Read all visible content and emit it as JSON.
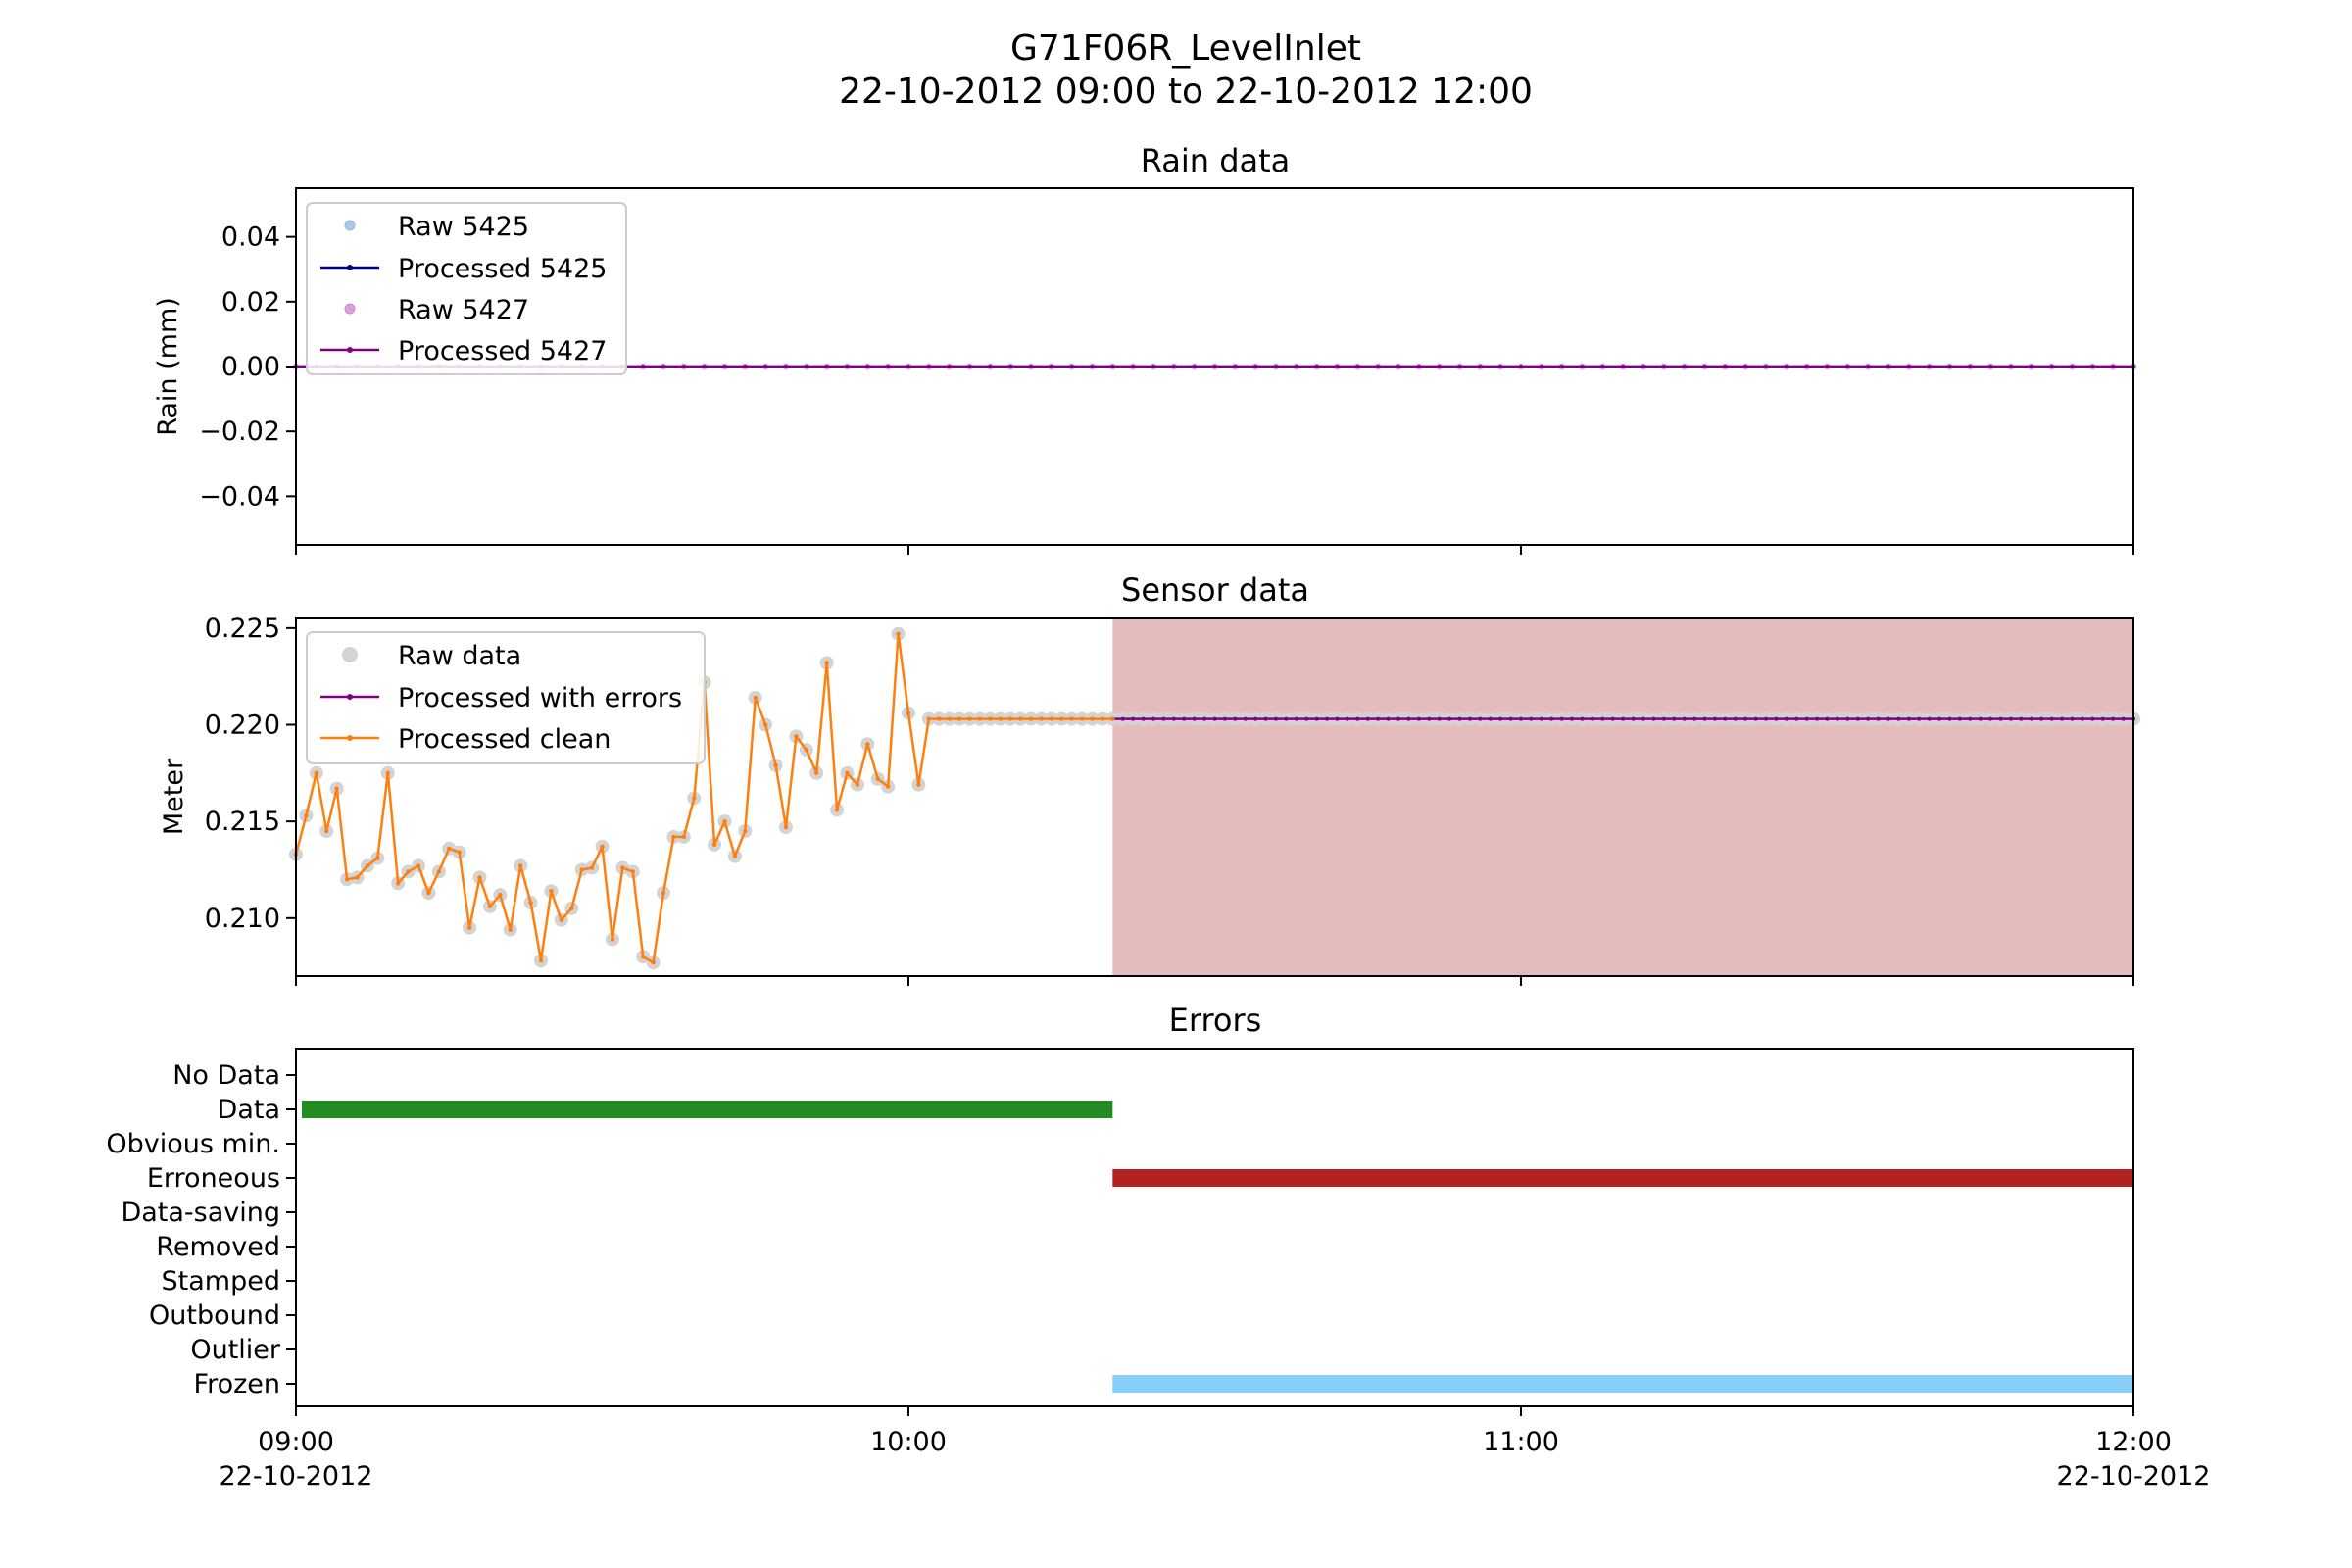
{
  "figure": {
    "title_line1": "G71F06R_LevelInlet",
    "title_line2": "22-10-2012 09:00 to 22-10-2012 12:00"
  },
  "x_axis": {
    "range": [
      "09:00",
      "12:00"
    ],
    "ticks": [
      {
        "value": "09:00",
        "label": "09:00",
        "sublabel": "22-10-2012"
      },
      {
        "value": "10:00",
        "label": "10:00",
        "sublabel": ""
      },
      {
        "value": "11:00",
        "label": "11:00",
        "sublabel": ""
      },
      {
        "value": "12:00",
        "label": "12:00",
        "sublabel": "22-10-2012"
      }
    ]
  },
  "chart_data": [
    {
      "type": "line",
      "title": "Rain data",
      "ylabel": "Rain (mm)",
      "ylim": [
        -0.055,
        0.055
      ],
      "yticks": [
        {
          "value": 0.04,
          "label": "0.04"
        },
        {
          "value": 0.02,
          "label": "0.02"
        },
        {
          "value": 0.0,
          "label": "0.00"
        },
        {
          "value": -0.02,
          "label": "−0.02"
        },
        {
          "value": -0.04,
          "label": "−0.04"
        }
      ],
      "xlim": [
        "09:00",
        "12:00"
      ],
      "grid": false,
      "legend_position": "top-left",
      "series": [
        {
          "name": "Raw 5425",
          "style": "markers",
          "color": "#aec7e8",
          "constant_value": 0,
          "x_start": "09:00",
          "x_end": "12:00",
          "step_minutes": 2
        },
        {
          "name": "Processed 5425",
          "style": "line-markers",
          "color": "#00008b",
          "constant_value": 0,
          "x_start": "09:00",
          "x_end": "12:00",
          "step_minutes": 2
        },
        {
          "name": "Raw 5427",
          "style": "markers",
          "color": "#dda0dd",
          "constant_value": 0,
          "x_start": "09:00",
          "x_end": "12:00",
          "step_minutes": 2
        },
        {
          "name": "Processed 5427",
          "style": "line-markers",
          "color": "#800080",
          "constant_value": 0,
          "x_start": "09:00",
          "x_end": "12:00",
          "step_minutes": 2
        }
      ]
    },
    {
      "type": "line",
      "title": "Sensor data",
      "ylabel": "Meter",
      "ylim": [
        0.207,
        0.2255
      ],
      "yticks": [
        {
          "value": 0.225,
          "label": "0.225"
        },
        {
          "value": 0.22,
          "label": "0.220"
        },
        {
          "value": 0.215,
          "label": "0.215"
        },
        {
          "value": 0.21,
          "label": "0.210"
        }
      ],
      "xlim": [
        "09:00",
        "12:00"
      ],
      "grid": false,
      "legend_position": "top-left",
      "shaded_region": {
        "x_start": "10:20",
        "x_end": "12:00",
        "color": "#e5bcbd"
      },
      "clean_series": {
        "name": "Processed clean",
        "color": "#ff7f0e",
        "step_minutes": 1,
        "x_start": "09:00",
        "values": [
          0.2133,
          0.2153,
          0.2175,
          0.2145,
          0.2167,
          0.212,
          0.2121,
          0.2127,
          0.2131,
          0.2175,
          0.2118,
          0.2124,
          0.2127,
          0.2113,
          0.2124,
          0.2136,
          0.2134,
          0.2095,
          0.2121,
          0.2106,
          0.2112,
          0.2094,
          0.2127,
          0.2108,
          0.2078,
          0.2114,
          0.2099,
          0.2105,
          0.2125,
          0.2126,
          0.2137,
          0.2089,
          0.2126,
          0.2124,
          0.208,
          0.2077,
          0.2113,
          0.2142,
          0.2142,
          0.2162,
          0.2222,
          0.2138,
          0.215,
          0.2132,
          0.2145,
          0.2214,
          0.22,
          0.2179,
          0.2147,
          0.2194,
          0.2187,
          0.2175,
          0.2232,
          0.2156,
          0.2175,
          0.2169,
          0.219,
          0.2172,
          0.2168,
          0.2247,
          0.2206,
          0.2169,
          0.2203,
          0.2203,
          0.2203,
          0.2203,
          0.2203,
          0.2203,
          0.2203,
          0.2203,
          0.2203,
          0.2203,
          0.2203,
          0.2203,
          0.2203,
          0.2203,
          0.2203,
          0.2203,
          0.2203,
          0.2203,
          0.2203
        ]
      },
      "error_series": {
        "name": "Processed with errors",
        "color": "#800080",
        "constant_value": 0.2203,
        "x_start": "10:20",
        "x_end": "12:00",
        "step_minutes": 1
      },
      "raw_series": {
        "name": "Raw data",
        "color": "#d3d3d3",
        "note": "raw points coincide with the processed clean values; from 10:20 onward raw data continues at the frozen value"
      }
    },
    {
      "type": "bar",
      "title": "Errors",
      "categories": [
        "No Data",
        "Data",
        "Obvious min.",
        "Erroneous",
        "Data-saving",
        "Removed",
        "Stamped",
        "Outbound",
        "Outlier",
        "Frozen"
      ],
      "xlim": [
        "09:00",
        "12:00"
      ],
      "grid": false,
      "intervals": [
        {
          "category": "Data",
          "x_start": "09:00",
          "x_end": "10:20",
          "color": "#228b22"
        },
        {
          "category": "Erroneous",
          "x_start": "10:20",
          "x_end": "12:00",
          "color": "#b22222"
        },
        {
          "category": "Frozen",
          "x_start": "10:20",
          "x_end": "12:00",
          "color": "#87cefa"
        }
      ]
    }
  ]
}
